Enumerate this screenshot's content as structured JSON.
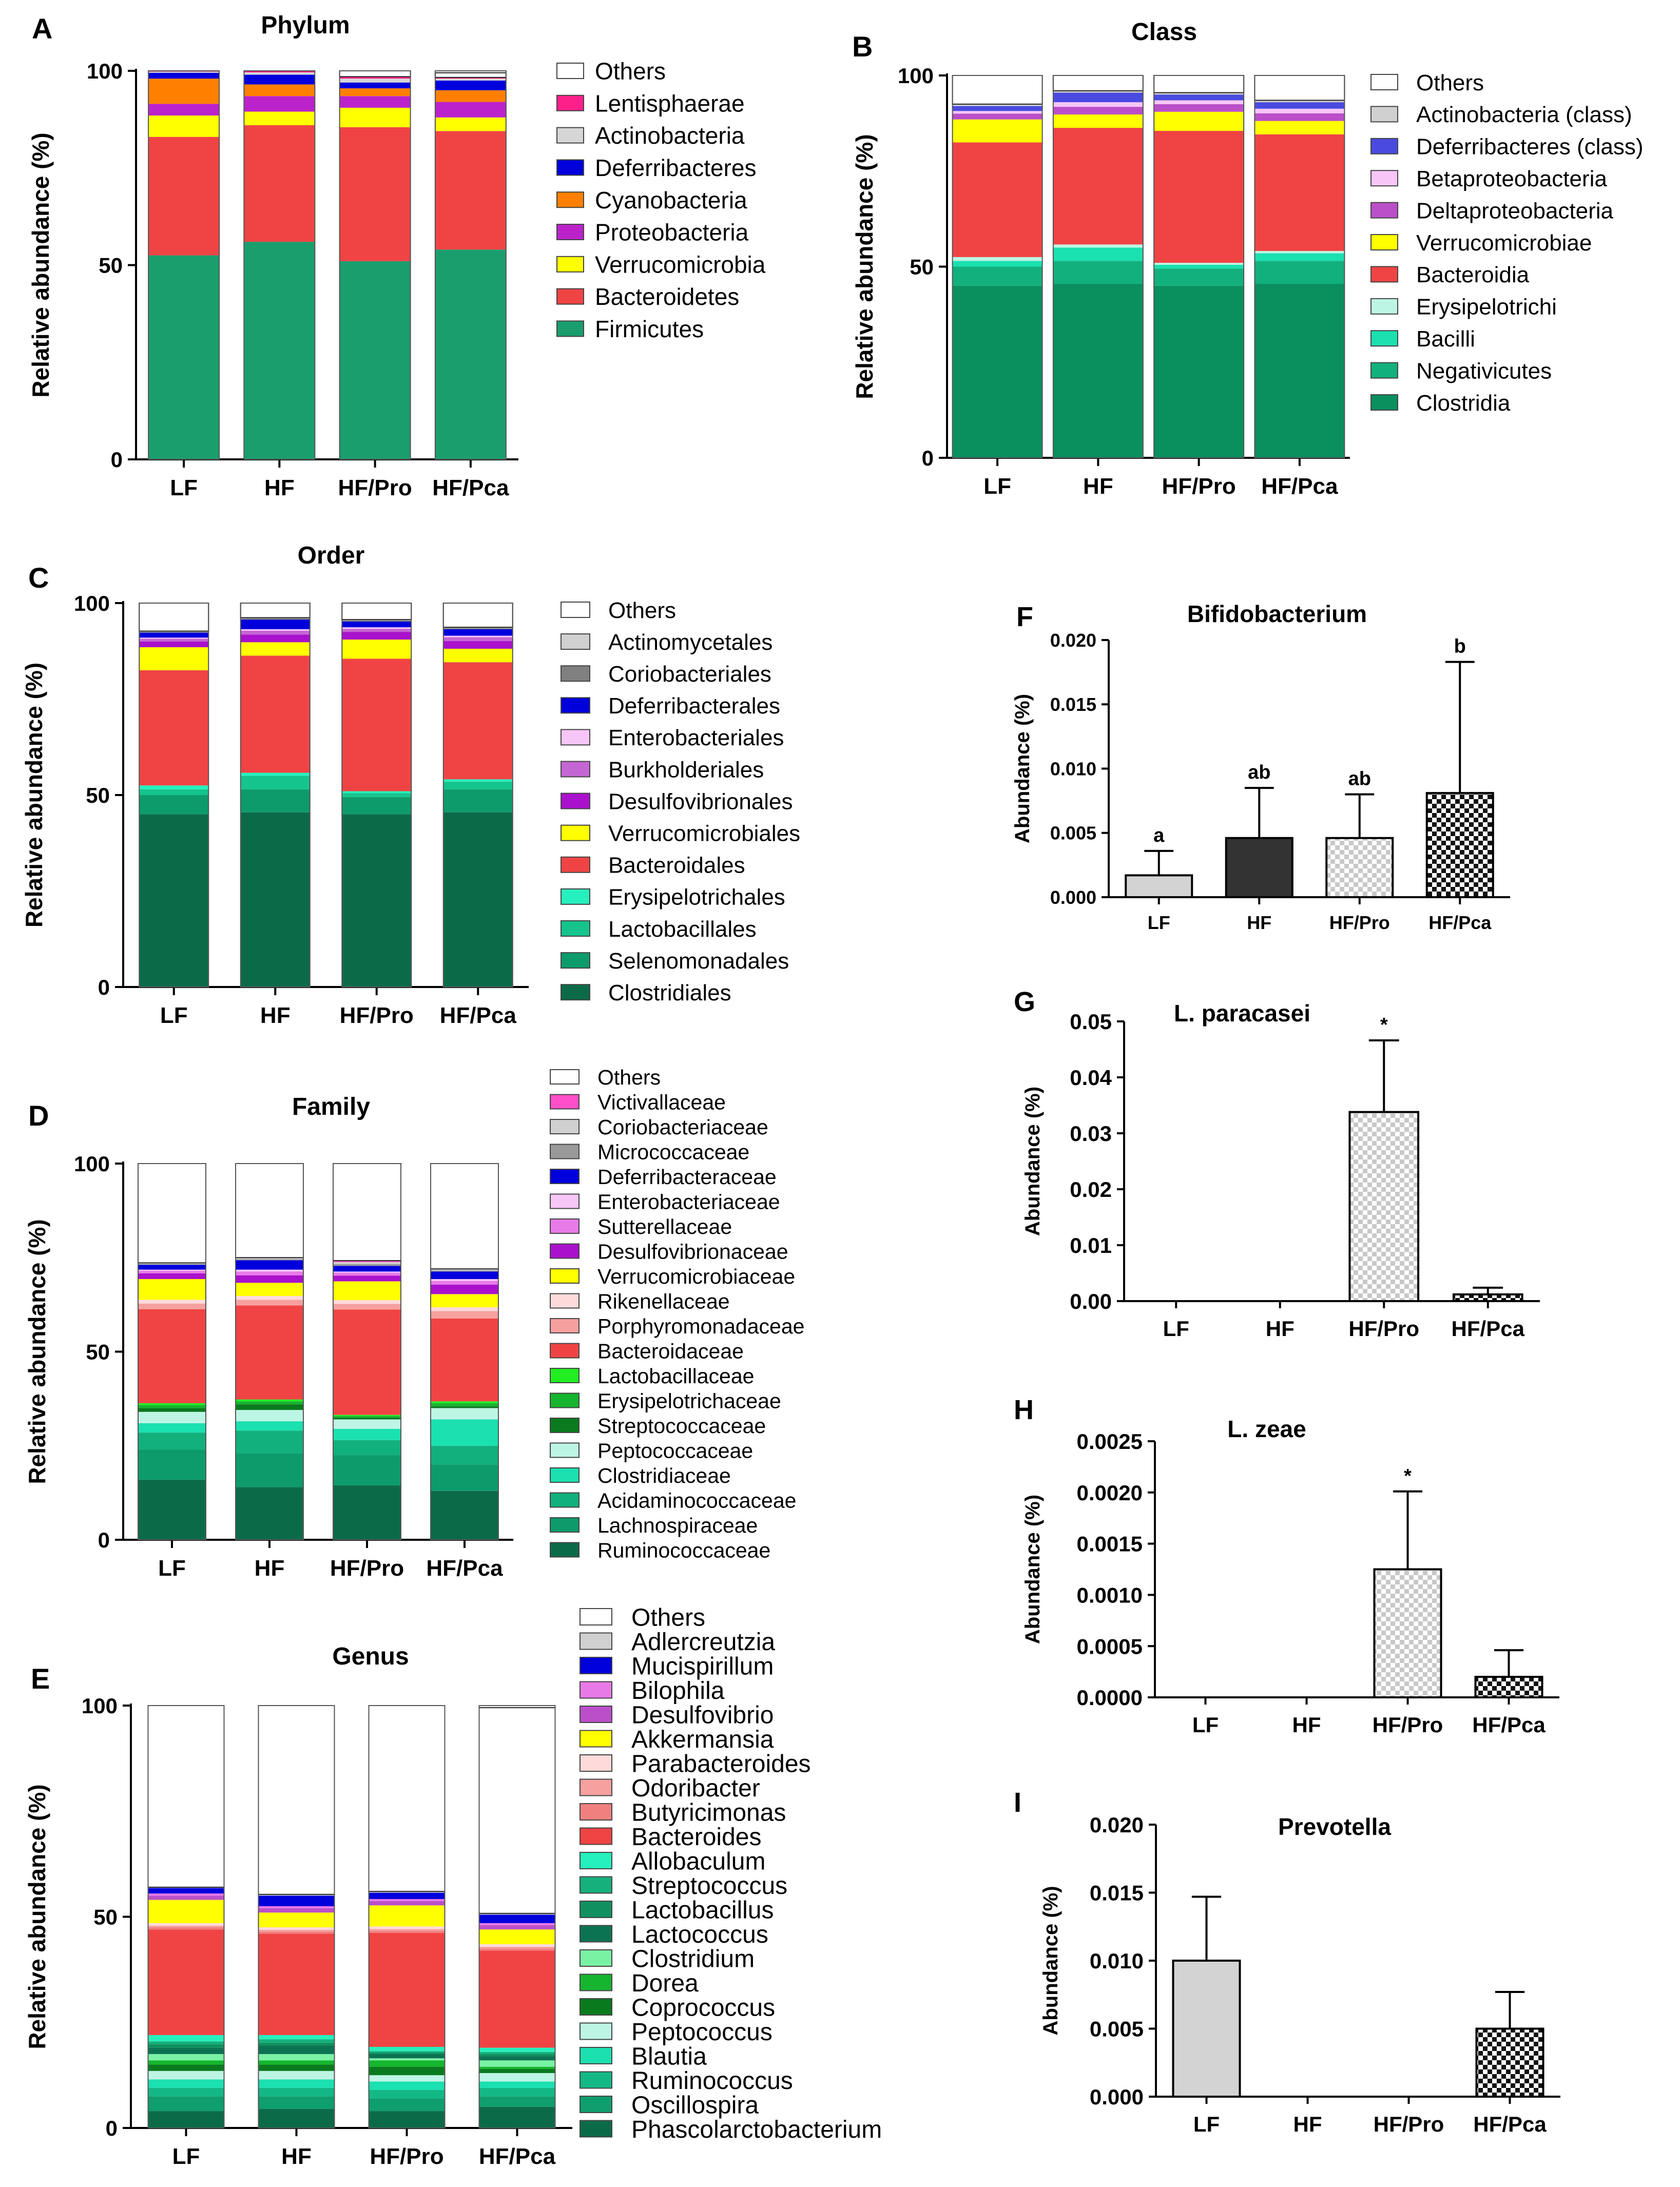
{
  "figure": {
    "panels": [
      "A",
      "B",
      "C",
      "D",
      "E",
      "F",
      "G",
      "H",
      "I"
    ]
  },
  "chart_data": [
    {
      "id": "A",
      "type": "bar",
      "stacked": true,
      "title": "Phylum",
      "ylabel": "Relative abundance (%)",
      "ylim": [
        0,
        100
      ],
      "yticks": [
        0,
        50,
        100
      ],
      "categories": [
        "LF",
        "HF",
        "HF/Pro",
        "HF/Pca"
      ],
      "legend_position": "right",
      "series": [
        {
          "name": "Firmicutes",
          "color": "#1a9e6e",
          "values": [
            52.5,
            56,
            51,
            54
          ]
        },
        {
          "name": "Bacteroidetes",
          "color": "#f04444",
          "values": [
            30.5,
            30,
            34.5,
            30.5
          ]
        },
        {
          "name": "Verrucomicrobia",
          "color": "#ffff00",
          "values": [
            5.5,
            3.5,
            5,
            3.5
          ]
        },
        {
          "name": "Proteobacteria",
          "color": "#bb22cc",
          "values": [
            3,
            4,
            3,
            4
          ]
        },
        {
          "name": "Cyanobacteria",
          "color": "#ff8000",
          "values": [
            6.5,
            3,
            2,
            3
          ]
        },
        {
          "name": "Deferribacteres",
          "color": "#0000dd",
          "values": [
            1.5,
            2.5,
            1.5,
            2.5
          ]
        },
        {
          "name": "Actinobacteria",
          "color": "#d6d6d6",
          "values": [
            0.3,
            0.6,
            1,
            0.5
          ]
        },
        {
          "name": "Lentisphaerae",
          "color": "#ff1f8a",
          "values": [
            0.2,
            0.4,
            0.5,
            0.3
          ]
        },
        {
          "name": "Others",
          "color": "#ffffff",
          "values": [
            0,
            0,
            1.5,
            1.2
          ]
        }
      ]
    },
    {
      "id": "B",
      "type": "bar",
      "stacked": true,
      "title": "Class",
      "ylabel": "Relative abundance (%)",
      "ylim": [
        0,
        100
      ],
      "yticks": [
        0,
        50,
        100
      ],
      "categories": [
        "LF",
        "HF",
        "HF/Pro",
        "HF/Pca"
      ],
      "legend_position": "right",
      "series": [
        {
          "name": "Clostridia",
          "color": "#0a8f5e",
          "values": [
            45,
            45.5,
            45,
            45.5
          ]
        },
        {
          "name": "Negativicutes",
          "color": "#12b07d",
          "values": [
            5,
            6,
            4.5,
            6
          ]
        },
        {
          "name": "Bacilli",
          "color": "#1be0b0",
          "values": [
            1.5,
            3.5,
            1,
            2
          ]
        },
        {
          "name": "Erysipelotrichi",
          "color": "#bdf5e4",
          "values": [
            1,
            0.8,
            0.5,
            0.6
          ]
        },
        {
          "name": "Bacteroidia",
          "color": "#f04444",
          "values": [
            30,
            30.5,
            34.5,
            30.5
          ]
        },
        {
          "name": "Verrucomicrobiae",
          "color": "#ffff00",
          "values": [
            6,
            3.5,
            5,
            3.5
          ]
        },
        {
          "name": "Deltaproteobacteria",
          "color": "#bb4fc9",
          "values": [
            1.5,
            2,
            2,
            2
          ]
        },
        {
          "name": "Betaproteobacteria",
          "color": "#f7c6f7",
          "values": [
            0.7,
            1.2,
            1,
            1.2
          ]
        },
        {
          "name": "Deferribacteres (class)",
          "color": "#4a4ae0",
          "values": [
            1.3,
            2.5,
            1.5,
            1.7
          ]
        },
        {
          "name": "Actinobacteria (class)",
          "color": "#d0d0d0",
          "values": [
            0.5,
            0.5,
            0.5,
            0.5
          ]
        },
        {
          "name": "Others",
          "color": "#ffffff",
          "values": [
            7.5,
            4,
            4.5,
            6.5
          ]
        }
      ]
    },
    {
      "id": "C",
      "type": "bar",
      "stacked": true,
      "title": "Order",
      "ylabel": "Relative abundance (%)",
      "ylim": [
        0,
        100
      ],
      "yticks": [
        0,
        50,
        100
      ],
      "categories": [
        "LF",
        "HF",
        "HF/Pro",
        "HF/Pca"
      ],
      "legend_position": "right",
      "series": [
        {
          "name": "Clostridiales",
          "color": "#0b6b48",
          "values": [
            45,
            45.5,
            45,
            45.5
          ]
        },
        {
          "name": "Selenomonadales",
          "color": "#0d9b6c",
          "values": [
            5,
            6,
            4.5,
            6
          ]
        },
        {
          "name": "Lactobacillales",
          "color": "#15c48c",
          "values": [
            1.5,
            3.5,
            1,
            2
          ]
        },
        {
          "name": "Erysipelotrichales",
          "color": "#26f0bd",
          "values": [
            1,
            0.8,
            0.5,
            0.6
          ]
        },
        {
          "name": "Bacteroidales",
          "color": "#f04444",
          "values": [
            30,
            30.5,
            34.5,
            30.5
          ]
        },
        {
          "name": "Verrucomicrobiales",
          "color": "#ffff00",
          "values": [
            6,
            3.5,
            5,
            3.5
          ]
        },
        {
          "name": "Desulfovibrionales",
          "color": "#aa11cc",
          "values": [
            1.5,
            2,
            2,
            2
          ]
        },
        {
          "name": "Burkholderiales",
          "color": "#c466d4",
          "values": [
            0.7,
            1,
            0.8,
            1
          ]
        },
        {
          "name": "Enterobacteriales",
          "color": "#f7c6f7",
          "values": [
            0.3,
            0.4,
            0.4,
            0.4
          ]
        },
        {
          "name": "Deferribacterales",
          "color": "#0000dd",
          "values": [
            1.3,
            2.5,
            1.5,
            1.7
          ]
        },
        {
          "name": "Coriobacteriales",
          "color": "#808080",
          "values": [
            0.2,
            0.3,
            0.3,
            0.3
          ]
        },
        {
          "name": "Actinomycetales",
          "color": "#d0d0d0",
          "values": [
            0.2,
            0.2,
            0.2,
            0.2
          ]
        },
        {
          "name": "Others",
          "color": "#ffffff",
          "values": [
            7.3,
            3.8,
            4.3,
            6.3
          ]
        }
      ]
    },
    {
      "id": "D",
      "type": "bar",
      "stacked": true,
      "title": "Family",
      "ylabel": "Relative abundance (%)",
      "ylim": [
        0,
        100
      ],
      "yticks": [
        0,
        50,
        100
      ],
      "categories": [
        "LF",
        "HF",
        "HF/Pro",
        "HF/Pca"
      ],
      "legend_position": "right",
      "series": [
        {
          "name": "Ruminococcaceae",
          "color": "#0b6b48",
          "values": [
            16,
            14,
            14.5,
            13
          ]
        },
        {
          "name": "Lachnospiraceae",
          "color": "#0d9b6c",
          "values": [
            8,
            9,
            8,
            7
          ]
        },
        {
          "name": "Acidaminococcaceae",
          "color": "#12b07d",
          "values": [
            4.5,
            6,
            4,
            5
          ]
        },
        {
          "name": "Clostridiaceae",
          "color": "#1be0b0",
          "values": [
            2.5,
            2.5,
            3,
            7
          ]
        },
        {
          "name": "Peptococcaceae",
          "color": "#bdf5e4",
          "values": [
            3,
            3,
            2.5,
            3
          ]
        },
        {
          "name": "Streptococcaceae",
          "color": "#0a7a1e",
          "values": [
            1,
            1.5,
            0.5,
            0.5
          ]
        },
        {
          "name": "Erysipelotrichaceae",
          "color": "#16b52f",
          "values": [
            0.8,
            0.8,
            0.4,
            0.8
          ]
        },
        {
          "name": "Lactobacillaceae",
          "color": "#22ee22",
          "values": [
            0.5,
            0.5,
            0.3,
            0.5
          ]
        },
        {
          "name": "Bacteroidaceae",
          "color": "#f04444",
          "values": [
            25,
            25,
            28,
            22
          ]
        },
        {
          "name": "Porphyromonadaceae",
          "color": "#f7a0a0",
          "values": [
            1.5,
            1.5,
            1.5,
            2
          ]
        },
        {
          "name": "Rikenellaceae",
          "color": "#ffdada",
          "values": [
            1,
            1,
            1,
            1
          ]
        },
        {
          "name": "Verrucomicrobiaceae",
          "color": "#ffff00",
          "values": [
            5.5,
            3.5,
            5,
            3.5
          ]
        },
        {
          "name": "Desulfovibrionaceae",
          "color": "#aa11cc",
          "values": [
            1.5,
            2,
            1.5,
            2.5
          ]
        },
        {
          "name": "Sutterellaceae",
          "color": "#e87ae8",
          "values": [
            0.7,
            1,
            0.8,
            1
          ]
        },
        {
          "name": "Enterobacteriaceae",
          "color": "#f7c6f7",
          "values": [
            0.3,
            0.5,
            0.3,
            0.5
          ]
        },
        {
          "name": "Deferribacteraceae",
          "color": "#0000dd",
          "values": [
            1.3,
            2.5,
            1.5,
            2
          ]
        },
        {
          "name": "Micrococcaceae",
          "color": "#999999",
          "values": [
            0.2,
            0.3,
            0.5,
            0.3
          ]
        },
        {
          "name": "Coriobacteriaceae",
          "color": "#d0d0d0",
          "values": [
            0.2,
            0.3,
            0.5,
            0.3
          ]
        },
        {
          "name": "Victivallaceae",
          "color": "#ff4fc9",
          "values": [
            0.1,
            0.1,
            0.4,
            0.1
          ]
        },
        {
          "name": "Others",
          "color": "#ffffff",
          "values": [
            26.4,
            25,
            25.8,
            28
          ]
        }
      ]
    },
    {
      "id": "E",
      "type": "bar",
      "stacked": true,
      "title": "Genus",
      "ylabel": "Relative abundance (%)",
      "ylim": [
        0,
        100
      ],
      "yticks": [
        0,
        50,
        100
      ],
      "categories": [
        "LF",
        "HF",
        "HF/Pro",
        "HF/Pca"
      ],
      "legend_position": "right",
      "series": [
        {
          "name": "Phascolarctobacterium",
          "color": "#0b6b48",
          "values": [
            4,
            4.5,
            4,
            5
          ]
        },
        {
          "name": "Oscillospira",
          "color": "#0f9e6e",
          "values": [
            3.5,
            3,
            3,
            2.5
          ]
        },
        {
          "name": "Ruminococcus",
          "color": "#14b886",
          "values": [
            2,
            2,
            2,
            2
          ]
        },
        {
          "name": "Blautia",
          "color": "#1be0b0",
          "values": [
            2,
            2,
            2,
            1.5
          ]
        },
        {
          "name": "Peptococcus",
          "color": "#bdf5e4",
          "values": [
            2,
            2,
            1.5,
            2
          ]
        },
        {
          "name": "Coprococcus",
          "color": "#0a7a1e",
          "values": [
            1.5,
            1.5,
            2,
            1
          ]
        },
        {
          "name": "Dorea",
          "color": "#16b52f",
          "values": [
            1,
            1,
            1.5,
            0.5
          ]
        },
        {
          "name": "Clostridium",
          "color": "#7af2a4",
          "values": [
            1.5,
            1.5,
            0.5,
            1.5
          ]
        },
        {
          "name": "Lactococcus",
          "color": "#0c7352",
          "values": [
            1.5,
            2,
            1,
            1
          ]
        },
        {
          "name": "Lactobacillus",
          "color": "#109060",
          "values": [
            0.8,
            0.7,
            0.3,
            0.5
          ]
        },
        {
          "name": "Streptococcus",
          "color": "#16b07c",
          "values": [
            0.7,
            0.8,
            0.4,
            0.5
          ]
        },
        {
          "name": "Allobaculum",
          "color": "#26f0bd",
          "values": [
            1.5,
            1,
            1,
            1
          ]
        },
        {
          "name": "Bacteroides",
          "color": "#f04444",
          "values": [
            25,
            24,
            27,
            23
          ]
        },
        {
          "name": "Butyricimonas",
          "color": "#f08080",
          "values": [
            0.5,
            0.5,
            0.5,
            0.5
          ]
        },
        {
          "name": "Odoribacter",
          "color": "#f7a0a0",
          "values": [
            0.4,
            0.4,
            0.4,
            0.4
          ]
        },
        {
          "name": "Parabacteroides",
          "color": "#ffdada",
          "values": [
            0.6,
            0.6,
            0.6,
            0.6
          ]
        },
        {
          "name": "Akkermansia",
          "color": "#ffff00",
          "values": [
            5.5,
            3.5,
            5,
            3.5
          ]
        },
        {
          "name": "Desulfovibrio",
          "color": "#bb4fc9",
          "values": [
            1,
            1,
            1,
            1
          ]
        },
        {
          "name": "Bilophila",
          "color": "#e87ae8",
          "values": [
            0.5,
            0.5,
            0.5,
            0.5
          ]
        },
        {
          "name": "Mucispirillum",
          "color": "#0000dd",
          "values": [
            1.3,
            2.5,
            1.5,
            2
          ]
        },
        {
          "name": "Adlercreutzia",
          "color": "#d0d0d0",
          "values": [
            0.2,
            0.3,
            0.3,
            0.3
          ]
        },
        {
          "name": "Others",
          "color": "#ffffff",
          "values": [
            43,
            44.7,
            44,
            48.7
          ]
        }
      ]
    },
    {
      "id": "F",
      "type": "bar",
      "title": "Bifidobacterium",
      "ylabel": "Abundance (%)",
      "ylim": [
        0,
        0.02
      ],
      "yticks": [
        "0.000",
        "0.005",
        "0.010",
        "0.015",
        "0.020"
      ],
      "categories": [
        "LF",
        "HF",
        "HF/Pro",
        "HF/Pca"
      ],
      "values": [
        0.0017,
        0.0046,
        0.0046,
        0.0081
      ],
      "errors": [
        0.0019,
        0.0039,
        0.0034,
        0.0102
      ],
      "annotations": [
        "a",
        "ab",
        "ab",
        "b"
      ],
      "fills": [
        "light",
        "dark",
        "check-light",
        "check-dark"
      ]
    },
    {
      "id": "G",
      "type": "bar",
      "title": "L. paracasei",
      "ylabel": "Abundance (%)",
      "ylim": [
        0,
        0.05
      ],
      "yticks": [
        "0.00",
        "0.01",
        "0.02",
        "0.03",
        "0.04",
        "0.05"
      ],
      "categories": [
        "LF",
        "HF",
        "HF/Pro",
        "HF/Pca"
      ],
      "values": [
        0,
        0,
        0.0338,
        0.0012
      ],
      "errors": [
        0,
        0,
        0.0128,
        0.0012
      ],
      "annotations": [
        "",
        "",
        "*",
        ""
      ],
      "fills": [
        "light",
        "dark",
        "check-light",
        "check-dark"
      ]
    },
    {
      "id": "H",
      "type": "bar",
      "title": "L. zeae",
      "ylabel": "Abundance (%)",
      "ylim": [
        0,
        0.0025
      ],
      "yticks": [
        "0.0000",
        "0.0005",
        "0.0010",
        "0.0015",
        "0.0020",
        "0.0025"
      ],
      "categories": [
        "LF",
        "HF",
        "HF/Pro",
        "HF/Pca"
      ],
      "values": [
        0,
        0,
        0.00125,
        0.0002
      ],
      "errors": [
        0,
        0,
        0.00076,
        0.00026
      ],
      "annotations": [
        "",
        "",
        "*",
        ""
      ],
      "fills": [
        "light",
        "dark",
        "check-light",
        "check-dark"
      ]
    },
    {
      "id": "I",
      "type": "bar",
      "title": "Prevotella",
      "ylabel": "Abundance (%)",
      "ylim": [
        0,
        0.02
      ],
      "yticks": [
        "0.000",
        "0.005",
        "0.010",
        "0.015",
        "0.020"
      ],
      "categories": [
        "LF",
        "HF",
        "HF/Pro",
        "HF/Pca"
      ],
      "values": [
        0.01,
        0,
        0,
        0.005
      ],
      "errors": [
        0.0047,
        0,
        0,
        0.0027
      ],
      "annotations": [
        "",
        "",
        "",
        ""
      ],
      "fills": [
        "light",
        "dark",
        "check-light",
        "check-dark"
      ]
    }
  ]
}
